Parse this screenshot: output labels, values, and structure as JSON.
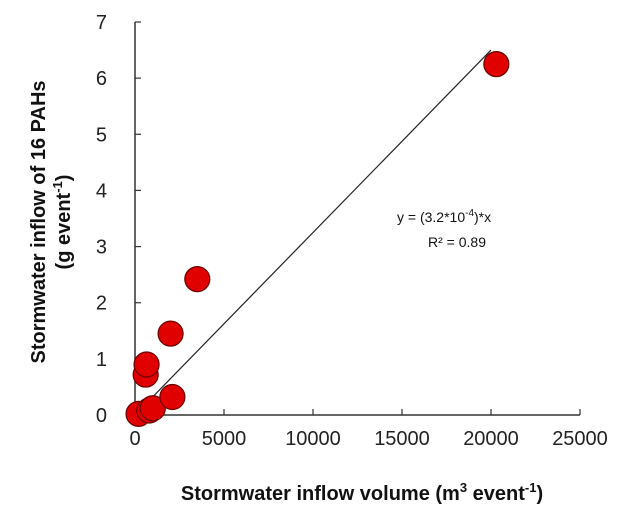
{
  "chart_data": {
    "type": "scatter",
    "xlabel": {
      "pre": "Stormwater inflow volume (m",
      "sup1": "3",
      "mid": " event",
      "sup2": "-1",
      "post": ")"
    },
    "ylabel": {
      "line1": "Stormwater inflow of 16 PAHs",
      "pre": "(g event",
      "sup": "-1",
      "post": ")"
    },
    "xlim": [
      0,
      25000
    ],
    "ylim": [
      0,
      7
    ],
    "xticks": [
      0,
      5000,
      10000,
      15000,
      20000,
      25000
    ],
    "yticks": [
      0,
      1,
      2,
      3,
      4,
      5,
      6,
      7
    ],
    "grid": false,
    "legend": "none",
    "marker_color": "#e00000",
    "series": [
      {
        "points": [
          {
            "x": 200,
            "y": 0.02
          },
          {
            "x": 800,
            "y": 0.08
          },
          {
            "x": 1000,
            "y": 0.12
          },
          {
            "x": 600,
            "y": 0.72
          },
          {
            "x": 650,
            "y": 0.9
          },
          {
            "x": 2000,
            "y": 1.45
          },
          {
            "x": 2100,
            "y": 0.32
          },
          {
            "x": 3500,
            "y": 2.42
          },
          {
            "x": 20300,
            "y": 6.25
          }
        ]
      }
    ],
    "fit_line": {
      "x": [
        0,
        20000
      ],
      "y": [
        0,
        6.5
      ]
    },
    "annotation": {
      "eq_pre": "y = (3.2*10",
      "eq_sup": "-4",
      "eq_post": ")*x",
      "r2": "R² = 0.89"
    }
  }
}
